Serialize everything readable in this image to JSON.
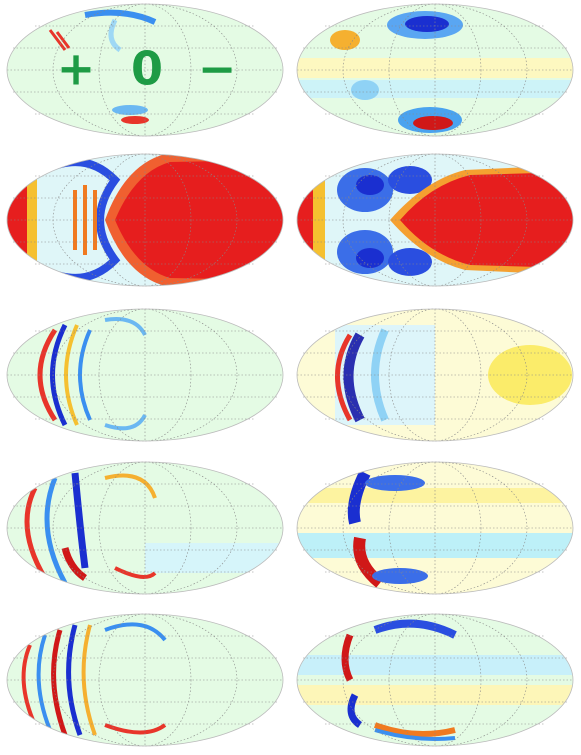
{
  "labels": [
    "+",
    "0",
    "−"
  ]
}
